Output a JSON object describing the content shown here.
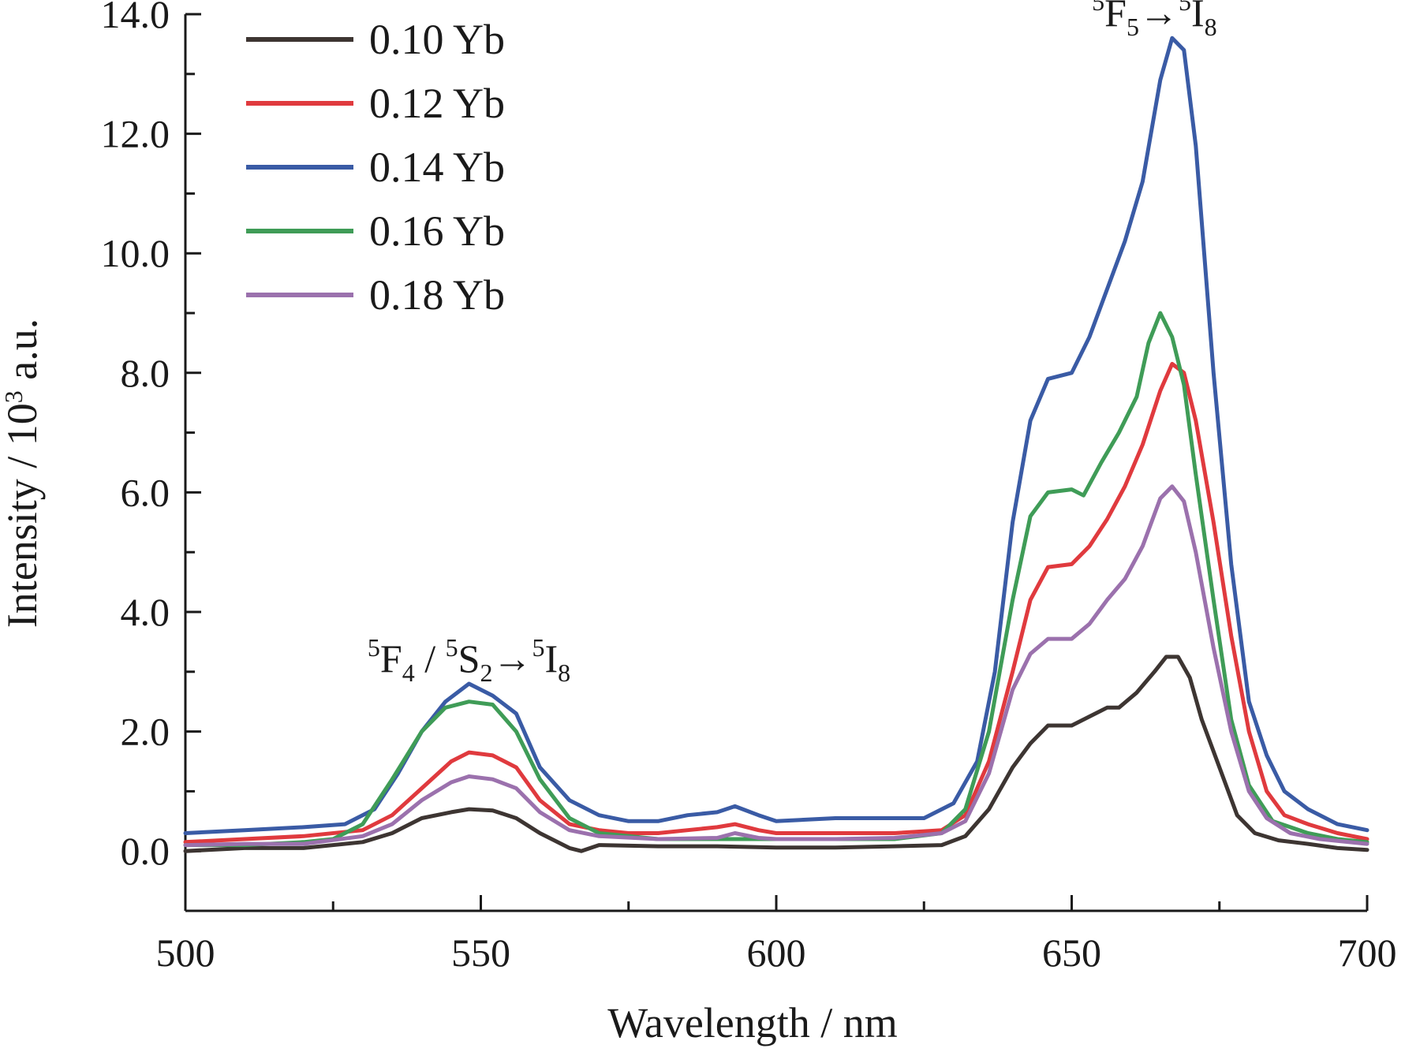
{
  "chart_data": {
    "type": "line",
    "xlabel": "Wavelength / nm",
    "ylabel_main": "Intensity / 10",
    "ylabel_sup": "3",
    "ylabel_tail": " a.u.",
    "xlim": [
      500,
      700
    ],
    "ylim": [
      -1.0,
      14.0
    ],
    "x_ticks": [
      500,
      550,
      600,
      650,
      700
    ],
    "x_tick_labels": [
      "500",
      "550",
      "600",
      "650",
      "700"
    ],
    "y_ticks": [
      0,
      2,
      4,
      6,
      8,
      10,
      12,
      14
    ],
    "y_tick_labels": [
      "0.0",
      "2.0",
      "4.0",
      "6.0",
      "8.0",
      "10.0",
      "12.0",
      "14.0"
    ],
    "grid": false,
    "legend_position": "top-left",
    "annotations": [
      {
        "parts": [
          [
            "5",
            "sup"
          ],
          [
            "F",
            "n"
          ],
          [
            "4",
            "sub"
          ],
          [
            " /  ",
            "n"
          ],
          [
            "5",
            "sup"
          ],
          [
            "S",
            "n"
          ],
          [
            "2",
            "sub"
          ],
          [
            "→",
            "n"
          ],
          [
            "5",
            "sup"
          ],
          [
            "I",
            "n"
          ],
          [
            "8",
            "sub"
          ]
        ],
        "x": 548,
        "y": 3.0
      },
      {
        "parts": [
          [
            "5",
            "sup"
          ],
          [
            "F",
            "n"
          ],
          [
            "5",
            "sub"
          ],
          [
            "→",
            "n"
          ],
          [
            "5",
            "sup"
          ],
          [
            "I",
            "n"
          ],
          [
            "8",
            "sub"
          ]
        ],
        "x": 664,
        "y": 13.8
      }
    ],
    "series": [
      {
        "name": "0.10 Yb",
        "color": "#3d3532",
        "points": [
          [
            500,
            0.0
          ],
          [
            510,
            0.05
          ],
          [
            520,
            0.05
          ],
          [
            530,
            0.15
          ],
          [
            535,
            0.3
          ],
          [
            540,
            0.55
          ],
          [
            545,
            0.65
          ],
          [
            548,
            0.7
          ],
          [
            552,
            0.68
          ],
          [
            556,
            0.55
          ],
          [
            560,
            0.3
          ],
          [
            565,
            0.05
          ],
          [
            567,
            0.0
          ],
          [
            570,
            0.1
          ],
          [
            580,
            0.08
          ],
          [
            590,
            0.08
          ],
          [
            600,
            0.06
          ],
          [
            610,
            0.06
          ],
          [
            620,
            0.08
          ],
          [
            628,
            0.1
          ],
          [
            632,
            0.25
          ],
          [
            636,
            0.7
          ],
          [
            640,
            1.4
          ],
          [
            643,
            1.8
          ],
          [
            646,
            2.1
          ],
          [
            650,
            2.1
          ],
          [
            653,
            2.25
          ],
          [
            656,
            2.4
          ],
          [
            658,
            2.4
          ],
          [
            661,
            2.65
          ],
          [
            664,
            3.0
          ],
          [
            666,
            3.25
          ],
          [
            668,
            3.25
          ],
          [
            670,
            2.9
          ],
          [
            672,
            2.2
          ],
          [
            675,
            1.4
          ],
          [
            678,
            0.6
          ],
          [
            681,
            0.3
          ],
          [
            685,
            0.18
          ],
          [
            690,
            0.12
          ],
          [
            695,
            0.05
          ],
          [
            700,
            0.02
          ]
        ]
      },
      {
        "name": "0.12 Yb",
        "color": "#e03a3e",
        "points": [
          [
            500,
            0.15
          ],
          [
            510,
            0.2
          ],
          [
            520,
            0.25
          ],
          [
            530,
            0.35
          ],
          [
            535,
            0.6
          ],
          [
            540,
            1.05
          ],
          [
            545,
            1.5
          ],
          [
            548,
            1.65
          ],
          [
            552,
            1.6
          ],
          [
            556,
            1.4
          ],
          [
            560,
            0.85
          ],
          [
            565,
            0.45
          ],
          [
            570,
            0.35
          ],
          [
            575,
            0.3
          ],
          [
            580,
            0.3
          ],
          [
            585,
            0.35
          ],
          [
            590,
            0.4
          ],
          [
            593,
            0.45
          ],
          [
            597,
            0.35
          ],
          [
            600,
            0.3
          ],
          [
            610,
            0.3
          ],
          [
            620,
            0.3
          ],
          [
            628,
            0.35
          ],
          [
            632,
            0.6
          ],
          [
            636,
            1.5
          ],
          [
            640,
            3.0
          ],
          [
            643,
            4.2
          ],
          [
            646,
            4.75
          ],
          [
            650,
            4.8
          ],
          [
            653,
            5.1
          ],
          [
            656,
            5.55
          ],
          [
            659,
            6.1
          ],
          [
            662,
            6.8
          ],
          [
            665,
            7.7
          ],
          [
            667,
            8.15
          ],
          [
            669,
            8.0
          ],
          [
            671,
            7.2
          ],
          [
            674,
            5.5
          ],
          [
            677,
            3.6
          ],
          [
            680,
            2.0
          ],
          [
            683,
            1.0
          ],
          [
            686,
            0.6
          ],
          [
            690,
            0.45
          ],
          [
            695,
            0.3
          ],
          [
            700,
            0.2
          ]
        ]
      },
      {
        "name": "0.14 Yb",
        "color": "#3a5ba5",
        "points": [
          [
            500,
            0.3
          ],
          [
            510,
            0.35
          ],
          [
            520,
            0.4
          ],
          [
            527,
            0.45
          ],
          [
            532,
            0.7
          ],
          [
            536,
            1.3
          ],
          [
            540,
            2.0
          ],
          [
            544,
            2.5
          ],
          [
            548,
            2.8
          ],
          [
            552,
            2.6
          ],
          [
            556,
            2.3
          ],
          [
            560,
            1.4
          ],
          [
            565,
            0.85
          ],
          [
            570,
            0.6
          ],
          [
            575,
            0.5
          ],
          [
            580,
            0.5
          ],
          [
            585,
            0.6
          ],
          [
            590,
            0.65
          ],
          [
            593,
            0.75
          ],
          [
            597,
            0.6
          ],
          [
            600,
            0.5
          ],
          [
            610,
            0.55
          ],
          [
            620,
            0.55
          ],
          [
            625,
            0.55
          ],
          [
            630,
            0.8
          ],
          [
            634,
            1.5
          ],
          [
            637,
            3.0
          ],
          [
            640,
            5.5
          ],
          [
            643,
            7.2
          ],
          [
            646,
            7.9
          ],
          [
            650,
            8.0
          ],
          [
            653,
            8.6
          ],
          [
            656,
            9.4
          ],
          [
            659,
            10.2
          ],
          [
            662,
            11.2
          ],
          [
            665,
            12.9
          ],
          [
            667,
            13.6
          ],
          [
            669,
            13.4
          ],
          [
            671,
            11.8
          ],
          [
            674,
            8.0
          ],
          [
            677,
            4.8
          ],
          [
            680,
            2.5
          ],
          [
            683,
            1.6
          ],
          [
            686,
            1.0
          ],
          [
            690,
            0.7
          ],
          [
            695,
            0.45
          ],
          [
            700,
            0.35
          ]
        ]
      },
      {
        "name": "0.16 Yb",
        "color": "#3f9c57",
        "points": [
          [
            500,
            0.1
          ],
          [
            510,
            0.1
          ],
          [
            520,
            0.15
          ],
          [
            525,
            0.2
          ],
          [
            530,
            0.45
          ],
          [
            535,
            1.2
          ],
          [
            540,
            2.0
          ],
          [
            544,
            2.4
          ],
          [
            548,
            2.5
          ],
          [
            552,
            2.45
          ],
          [
            556,
            2.0
          ],
          [
            560,
            1.2
          ],
          [
            565,
            0.55
          ],
          [
            570,
            0.3
          ],
          [
            580,
            0.2
          ],
          [
            590,
            0.2
          ],
          [
            600,
            0.2
          ],
          [
            610,
            0.2
          ],
          [
            620,
            0.2
          ],
          [
            628,
            0.3
          ],
          [
            632,
            0.7
          ],
          [
            636,
            2.0
          ],
          [
            640,
            4.2
          ],
          [
            643,
            5.6
          ],
          [
            646,
            6.0
          ],
          [
            650,
            6.05
          ],
          [
            652,
            5.95
          ],
          [
            655,
            6.5
          ],
          [
            658,
            7.0
          ],
          [
            661,
            7.6
          ],
          [
            663,
            8.5
          ],
          [
            665,
            9.0
          ],
          [
            667,
            8.6
          ],
          [
            669,
            7.8
          ],
          [
            671,
            6.3
          ],
          [
            674,
            4.2
          ],
          [
            677,
            2.2
          ],
          [
            680,
            1.1
          ],
          [
            684,
            0.5
          ],
          [
            690,
            0.3
          ],
          [
            695,
            0.2
          ],
          [
            700,
            0.15
          ]
        ]
      },
      {
        "name": "0.18 Yb",
        "color": "#9b71ad",
        "points": [
          [
            500,
            0.1
          ],
          [
            510,
            0.12
          ],
          [
            520,
            0.12
          ],
          [
            530,
            0.25
          ],
          [
            535,
            0.45
          ],
          [
            540,
            0.85
          ],
          [
            545,
            1.15
          ],
          [
            548,
            1.25
          ],
          [
            552,
            1.2
          ],
          [
            556,
            1.05
          ],
          [
            560,
            0.65
          ],
          [
            565,
            0.35
          ],
          [
            570,
            0.25
          ],
          [
            580,
            0.2
          ],
          [
            590,
            0.22
          ],
          [
            593,
            0.3
          ],
          [
            597,
            0.22
          ],
          [
            600,
            0.2
          ],
          [
            610,
            0.2
          ],
          [
            620,
            0.22
          ],
          [
            628,
            0.3
          ],
          [
            632,
            0.5
          ],
          [
            636,
            1.3
          ],
          [
            640,
            2.7
          ],
          [
            643,
            3.3
          ],
          [
            646,
            3.55
          ],
          [
            650,
            3.55
          ],
          [
            653,
            3.8
          ],
          [
            656,
            4.2
          ],
          [
            659,
            4.55
          ],
          [
            662,
            5.1
          ],
          [
            665,
            5.9
          ],
          [
            667,
            6.1
          ],
          [
            669,
            5.85
          ],
          [
            671,
            5.0
          ],
          [
            674,
            3.4
          ],
          [
            677,
            2.0
          ],
          [
            680,
            1.0
          ],
          [
            683,
            0.55
          ],
          [
            687,
            0.3
          ],
          [
            692,
            0.2
          ],
          [
            700,
            0.12
          ]
        ]
      }
    ]
  }
}
